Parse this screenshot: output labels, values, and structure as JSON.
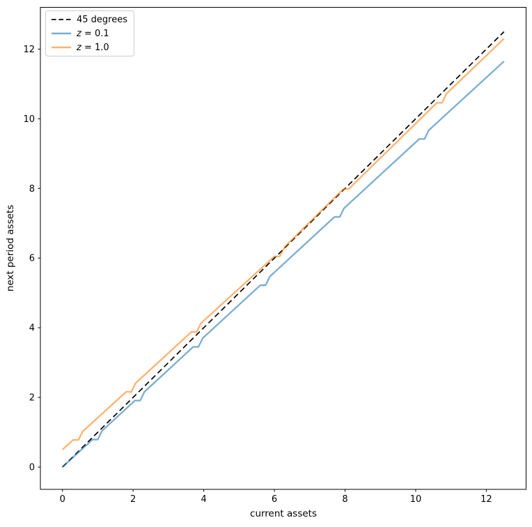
{
  "figure": {
    "xlabel": "current assets",
    "ylabel": "next period assets",
    "background": "#ffffff",
    "spine_color": "#000000"
  },
  "chart_data": {
    "type": "line",
    "title": "",
    "xlabel": "current assets",
    "ylabel": "next period assets",
    "xlim": [
      -0.625,
      13.125
    ],
    "ylim": [
      -0.64,
      13.2
    ],
    "xticks": [
      0,
      2,
      4,
      6,
      8,
      10,
      12
    ],
    "yticks": [
      0,
      2,
      4,
      6,
      8,
      10,
      12
    ],
    "grid": false,
    "legend_position": "upper-left",
    "series": [
      {
        "name": "45 degrees",
        "style": "dashed",
        "color": "#000000",
        "opacity": 1,
        "width": 1.7,
        "points": [
          [
            0,
            0
          ],
          [
            12.5,
            12.5
          ]
        ]
      },
      {
        "name": "z = 0.1",
        "style": "solid",
        "color": "#1f77b4",
        "opacity": 0.6,
        "width": 2.3,
        "points": [
          [
            0,
            0
          ],
          [
            0.85,
            0.79
          ],
          [
            1.0,
            0.79
          ],
          [
            1.12,
            1.04
          ],
          [
            2.05,
            1.91
          ],
          [
            2.2,
            1.91
          ],
          [
            2.32,
            2.16
          ],
          [
            3.7,
            3.45
          ],
          [
            3.85,
            3.45
          ],
          [
            3.97,
            3.7
          ],
          [
            5.6,
            5.22
          ],
          [
            5.75,
            5.22
          ],
          [
            5.87,
            5.47
          ],
          [
            7.7,
            7.18
          ],
          [
            7.85,
            7.18
          ],
          [
            7.97,
            7.43
          ],
          [
            10.1,
            9.42
          ],
          [
            10.25,
            9.42
          ],
          [
            10.37,
            9.67
          ],
          [
            12.5,
            11.65
          ]
        ]
      },
      {
        "name": "z = 1.0",
        "style": "solid",
        "color": "#ff7f0e",
        "opacity": 0.6,
        "width": 2.3,
        "points": [
          [
            0,
            0.5
          ],
          [
            0.3,
            0.78
          ],
          [
            0.45,
            0.78
          ],
          [
            0.57,
            1.02
          ],
          [
            1.8,
            2.16
          ],
          [
            1.95,
            2.16
          ],
          [
            2.07,
            2.41
          ],
          [
            3.65,
            3.88
          ],
          [
            3.8,
            3.88
          ],
          [
            3.92,
            4.13
          ],
          [
            6.0,
            6.05
          ],
          [
            6.15,
            6.05
          ],
          [
            6.3,
            6.33
          ],
          [
            7.95,
            7.98
          ],
          [
            8.1,
            7.98
          ],
          [
            10.6,
            10.46
          ],
          [
            10.75,
            10.46
          ],
          [
            10.87,
            10.72
          ],
          [
            12.5,
            12.3
          ]
        ]
      }
    ],
    "legend": [
      {
        "style": "dashed",
        "color": "#000000",
        "opacity": 1,
        "italic_var": "",
        "text": "45 degrees"
      },
      {
        "style": "solid",
        "color": "#1f77b4",
        "opacity": 0.6,
        "italic_var": "z",
        "text": " = 0.1"
      },
      {
        "style": "solid",
        "color": "#ff7f0e",
        "opacity": 0.6,
        "italic_var": "z",
        "text": " = 1.0"
      }
    ]
  }
}
